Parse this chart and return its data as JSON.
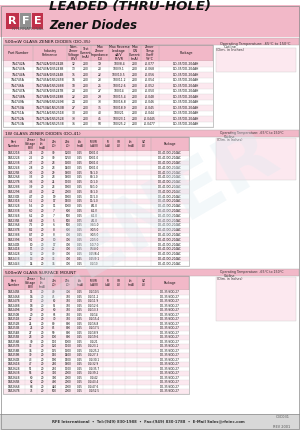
{
  "title_line1": "LEADED (THRU-HOLE)",
  "title_line2": "Zener Diodes",
  "bg_color": "#ffffff",
  "header_bg": "#f2b8c8",
  "table_col_bg": "#f2b8c8",
  "footer_bg": "#d8d8d8",
  "logo_red": "#c0304a",
  "logo_gray": "#909090",
  "footer_text": "RFE International  •  Tel:(949) 830-1988  •  Fax:(949) 830-1788  •  E-Mail Sales@rfeinc.com",
  "doc_num": "C3C031",
  "rev": "REV 2001",
  "section1_title": "500mW GLASS ZENER DIODES (DO-35)",
  "section2_title": "1W GLASS ZENER DIODES (DO-41)",
  "section3_title": "500mW GLASS SURFACE MOUNT",
  "op_temp_label": "Operating Temperature: -65°C to 150°C",
  "outline_label": "Outline\n(Dim. in Inches)",
  "s1_col_headers": [
    "Part Number",
    "Industry\nReference",
    "Nominal\nZener\nVoltage\n(BV)\nV",
    "Test\nCurrent\n(mA)\nIzt",
    "Max Zener\nImpedance\n(Ohms)\nZzt",
    "Max Reverse\nLeakage at Vr\nuA / V\nIR / VR",
    "Max ON\nCurrent\n(mA)\nIF",
    "Zener\nTemperature\nCoefficient\n(%/°C)",
    "Package"
  ],
  "s1_rows": [
    [
      "1N4742A",
      "1N4742A/1N5242B",
      "12",
      "200",
      "19",
      "100/8.4",
      "200",
      "-0.077",
      "DO-35/DO-204AH"
    ],
    [
      "1N4743A",
      "1N4743A/1N5243B",
      "13",
      "200",
      "20",
      "100/9.1",
      "200",
      "-0.068",
      "DO-35/DO-204AH"
    ],
    [
      "1N4744A",
      "1N4744A/1N5244B",
      "15",
      "200",
      "22",
      "100/10.5",
      "200",
      "-0.056",
      "DO-35/DO-204AH"
    ],
    [
      "1N4745A",
      "1N4745A/1N5245B",
      "16",
      "200",
      "23",
      "100/11.2",
      "200",
      "-0.054",
      "DO-35/DO-204AH"
    ],
    [
      "1N4746A",
      "1N4746A/1N5246B",
      "18",
      "200",
      "25",
      "100/12.6",
      "200",
      "-0.052",
      "DO-35/DO-204AH"
    ],
    [
      "1N4747A",
      "1N4747A/1N5247B",
      "20",
      "200",
      "27",
      "100/14",
      "200",
      "-0.050",
      "DO-35/DO-204AH"
    ],
    [
      "1N4748A",
      "1N4748A/1N5248B",
      "22",
      "200",
      "29",
      "100/15.4",
      "200",
      "-0.048",
      "DO-35/DO-204AH"
    ],
    [
      "1N4749A",
      "1N4749A/1N5249B",
      "24",
      "200",
      "33",
      "100/16.8",
      "200",
      "-0.046",
      "DO-35/DO-204AH"
    ],
    [
      "1N4750A",
      "1N4750A/1N5250B",
      "27",
      "200",
      "35",
      "100/18.9",
      "200",
      "-0.045",
      "DO-35/DO-204AH"
    ],
    [
      "1N4751A",
      "1N4751A/1N5251B",
      "30",
      "200",
      "40",
      "100/21",
      "200",
      "-0.044",
      "DO-35/DO-204AH"
    ],
    [
      "1N4752A",
      "1N4752A/1N5252B",
      "33",
      "200",
      "45",
      "100/23.1",
      "200",
      "-0.0445",
      "DO-35/DO-204AH"
    ],
    [
      "1N4753A",
      "1N4753A/1N5253B",
      "36",
      "200",
      "50",
      "100/25.2",
      "200",
      "-0.0477",
      "DO-35/DO-204AH"
    ]
  ],
  "s2_col_headers": [
    "Part\nNumber",
    "Zener\nVoltage\n(BV)\nV",
    "Test\nCurrent\n(mA)\nIzt",
    "Max Zener\nImpedance\n(Ohms)\nZzt",
    "Max Zener\nImpedance\n(Ohms)\nZzk",
    "Test\nCurrent\n(mA)\nIzk",
    "Max\nReverse\nLeakage\nuA / V",
    "Test\nCurrent\nuA\nIzk",
    "Max\nReverse\nLeakage\nVR (V)",
    "Test\nCurrent\n(mA)\nIzt",
    "Zener\nVoltage\n(V)\nVZ",
    "Package"
  ],
  "s2_rows": [
    [
      "1N5221B",
      "2.4",
      "20",
      "30",
      "1200",
      "0.25",
      "100/1.0",
      "",
      "",
      "",
      "",
      "DO-41/DO-204AC"
    ],
    [
      "1N5222B",
      "2.5",
      "20",
      "30",
      "1250",
      "0.25",
      "100/1.0",
      "",
      "",
      "",
      "",
      "DO-41/DO-204AC"
    ],
    [
      "1N5223B",
      "2.7",
      "20",
      "28",
      "1300",
      "0.25",
      "100/1.0",
      "",
      "",
      "",
      "",
      "DO-41/DO-204AC"
    ],
    [
      "1N5224B",
      "2.8",
      "20",
      "28",
      "1400",
      "0.25",
      "100/1.0",
      "",
      "",
      "",
      "",
      "DO-41/DO-204AC"
    ],
    [
      "1N5225B",
      "3.0",
      "20",
      "29",
      "1600",
      "0.25",
      "95/1.0",
      "",
      "",
      "",
      "",
      "DO-41/DO-204AC"
    ],
    [
      "1N5226B",
      "3.3",
      "20",
      "28",
      "1600",
      "0.25",
      "80/1.0",
      "",
      "",
      "",
      "",
      "DO-41/DO-204AC"
    ],
    [
      "1N5227B",
      "3.6",
      "20",
      "24",
      "1700",
      "0.25",
      "70/1.0",
      "",
      "",
      "",
      "",
      "DO-41/DO-204AC"
    ],
    [
      "1N5228B",
      "3.9",
      "20",
      "23",
      "1900",
      "0.25",
      "55/1.0",
      "",
      "",
      "",
      "",
      "DO-41/DO-204AC"
    ],
    [
      "1N5229B",
      "4.3",
      "20",
      "22",
      "2000",
      "0.25",
      "30/1.0",
      "",
      "",
      "",
      "",
      "DO-41/DO-204AC"
    ],
    [
      "1N5230B",
      "4.7",
      "20",
      "19",
      "1900",
      "0.25",
      "17/1.0",
      "",
      "",
      "",
      "",
      "DO-41/DO-204AC"
    ],
    [
      "1N5231B",
      "5.1",
      "20",
      "17",
      "1500",
      "0.25",
      "11/1.0",
      "",
      "",
      "",
      "",
      "DO-41/DO-204AC"
    ],
    [
      "1N5232B",
      "5.6",
      "20",
      "11",
      "1000",
      "0.25",
      "8/1.0",
      "",
      "",
      "",
      "",
      "DO-41/DO-204AC"
    ],
    [
      "1N5233B",
      "6.0",
      "20",
      "7",
      "600",
      "0.25",
      "6/1.0",
      "",
      "",
      "",
      "",
      "DO-41/DO-204AC"
    ],
    [
      "1N5234B",
      "6.2",
      "20",
      "7",
      "500",
      "0.25",
      "6/1.0",
      "",
      "",
      "",
      "",
      "DO-41/DO-204AC"
    ],
    [
      "1N5235B",
      "6.8",
      "20",
      "5",
      "500",
      "0.25",
      "4/1.0",
      "",
      "",
      "",
      "",
      "DO-41/DO-204AC"
    ],
    [
      "1N5236B",
      "7.5",
      "20",
      "6",
      "500",
      "0.25",
      "3.5/1.0",
      "",
      "",
      "",
      "",
      "DO-41/DO-204AC"
    ],
    [
      "1N5237B",
      "8.2",
      "20",
      "8",
      "600",
      "0.25",
      "3.0/5.0",
      "",
      "",
      "",
      "",
      "DO-41/DO-204AC"
    ],
    [
      "1N5238B",
      "8.7",
      "20",
      "8",
      "700",
      "0.25",
      "3.0/5.0",
      "",
      "",
      "",
      "",
      "DO-41/DO-204AC"
    ],
    [
      "1N5239B",
      "9.1",
      "20",
      "10",
      "700",
      "0.25",
      "2.0/5.0",
      "",
      "",
      "",
      "",
      "DO-41/DO-204AC"
    ],
    [
      "1N5240B",
      "10",
      "20",
      "17",
      "700",
      "0.25",
      "1.0/7.0",
      "",
      "",
      "",
      "",
      "DO-41/DO-204AC"
    ],
    [
      "1N5241B",
      "11",
      "20",
      "22",
      "700",
      "0.25",
      "0.5/8.0",
      "",
      "",
      "",
      "",
      "DO-41/DO-204AC"
    ],
    [
      "1N5242B",
      "12",
      "20",
      "30",
      "700",
      "0.25",
      "0.25/8.4",
      "",
      "",
      "",
      "",
      "DO-41/DO-204AC"
    ],
    [
      "1N5243B",
      "13",
      "20",
      "33",
      "700",
      "0.25",
      "0.25/9.1",
      "",
      "",
      "",
      "",
      "DO-41/DO-204AC"
    ],
    [
      "1N5244B",
      "14",
      "20",
      "36",
      "700",
      "0.25",
      "0.1/10",
      "",
      "",
      "",
      "",
      "DO-41/DO-204AC"
    ]
  ],
  "s3_col_headers": [
    "Part\nNumber",
    "Zener\nVoltage\n(BV)\nV",
    "Test\nCurrent\n(mA)\nIzt",
    "Max Zener\nImpedance\n(Ohms)\nZzt",
    "Max Zener\nImpedance\n(Ohms)\nZzk",
    "Test\nCurrent\n(mA)\nIzk",
    "Max\nReverse\nLeakage\nuA/V",
    "Test\nCurrent\n(uA)\nIR",
    "Max Rev.\nVoltage\n(V)\nVR",
    "Test\nCurrent\nmA\nIzt",
    "Zener V\n(V)\nVZ",
    "Package"
  ],
  "s3_rows": [
    [
      "1N5245B",
      "15",
      "20",
      "40",
      "700",
      "0.25",
      "0.1/10.5",
      "",
      "",
      "",
      "",
      "DO-35/SOD-27"
    ],
    [
      "1N5246B",
      "16",
      "20",
      "45",
      "750",
      "0.25",
      "0.1/11.2",
      "",
      "",
      "",
      "",
      "DO-35/SOD-27"
    ],
    [
      "1N5247B",
      "17",
      "20",
      "50",
      "750",
      "0.25",
      "0.1/11.9",
      "",
      "",
      "",
      "",
      "DO-35/SOD-27"
    ],
    [
      "1N5248B",
      "18",
      "20",
      "55",
      "750",
      "0.25",
      "0.1/12.6",
      "",
      "",
      "",
      "",
      "DO-35/SOD-27"
    ],
    [
      "1N5249B",
      "19",
      "20",
      "60",
      "750",
      "0.25",
      "0.1/13.3",
      "",
      "",
      "",
      "",
      "DO-35/SOD-27"
    ],
    [
      "1N5250B",
      "20",
      "20",
      "65",
      "750",
      "0.25",
      "0.1/14",
      "",
      "",
      "",
      "",
      "DO-35/SOD-27"
    ],
    [
      "1N5251B",
      "22",
      "20",
      "70",
      "750",
      "0.25",
      "0.1/15.4",
      "",
      "",
      "",
      "",
      "DO-35/SOD-27"
    ],
    [
      "1N5252B",
      "24",
      "20",
      "80",
      "800",
      "0.25",
      "0.1/16.8",
      "",
      "",
      "",
      "",
      "DO-35/SOD-27"
    ],
    [
      "1N5253B",
      "25",
      "20",
      "85",
      "800",
      "0.25",
      "0.1/17.5",
      "",
      "",
      "",
      "",
      "DO-35/SOD-27"
    ],
    [
      "1N5254B",
      "27",
      "20",
      "90",
      "800",
      "0.25",
      "0.1/18.9",
      "",
      "",
      "",
      "",
      "DO-35/SOD-27"
    ],
    [
      "1N5255B",
      "28",
      "20",
      "100",
      "800",
      "0.25",
      "0.1/19.6",
      "",
      "",
      "",
      "",
      "DO-35/SOD-27"
    ],
    [
      "1N5256B",
      "30",
      "20",
      "110",
      "1000",
      "0.25",
      "0.1/21",
      "",
      "",
      "",
      "",
      "DO-35/SOD-27"
    ],
    [
      "1N5257B",
      "33",
      "20",
      "120",
      "1100",
      "0.25",
      "0.1/23.1",
      "",
      "",
      "",
      "",
      "DO-35/SOD-27"
    ],
    [
      "1N5258B",
      "36",
      "20",
      "135",
      "1300",
      "0.25",
      "0.1/25.2",
      "",
      "",
      "",
      "",
      "DO-35/SOD-27"
    ],
    [
      "1N5259B",
      "39",
      "20",
      "150",
      "1400",
      "0.25",
      "0.1/27.3",
      "",
      "",
      "",
      "",
      "DO-35/SOD-27"
    ],
    [
      "1N5260B",
      "43",
      "20",
      "190",
      "1500",
      "0.25",
      "0.1/30.1",
      "",
      "",
      "",
      "",
      "DO-35/SOD-27"
    ],
    [
      "1N5261B",
      "47",
      "20",
      "230",
      "1600",
      "0.25",
      "0.1/32.9",
      "",
      "",
      "",
      "",
      "DO-35/SOD-27"
    ],
    [
      "1N5262B",
      "51",
      "20",
      "270",
      "1700",
      "0.25",
      "0.1/35.7",
      "",
      "",
      "",
      "",
      "DO-35/SOD-27"
    ],
    [
      "1N5263B",
      "56",
      "20",
      "330",
      "2000",
      "0.25",
      "0.1/39.2",
      "",
      "",
      "",
      "",
      "DO-35/SOD-27"
    ],
    [
      "1N5264B",
      "60",
      "20",
      "390",
      "2000",
      "0.25",
      "0.1/42",
      "",
      "",
      "",
      "",
      "DO-35/SOD-27"
    ],
    [
      "1N5265B",
      "62",
      "20",
      "400",
      "2000",
      "0.25",
      "0.1/43.4",
      "",
      "",
      "",
      "",
      "DO-35/SOD-27"
    ],
    [
      "1N5266B",
      "68",
      "20",
      "440",
      "2000",
      "0.25",
      "0.1/47.6",
      "",
      "",
      "",
      "",
      "DO-35/SOD-27"
    ],
    [
      "1N5267B",
      "75",
      "20",
      "500",
      "2000",
      "0.25",
      "0.1/52.5",
      "",
      "",
      "",
      "",
      "DO-35/SOD-27"
    ]
  ]
}
